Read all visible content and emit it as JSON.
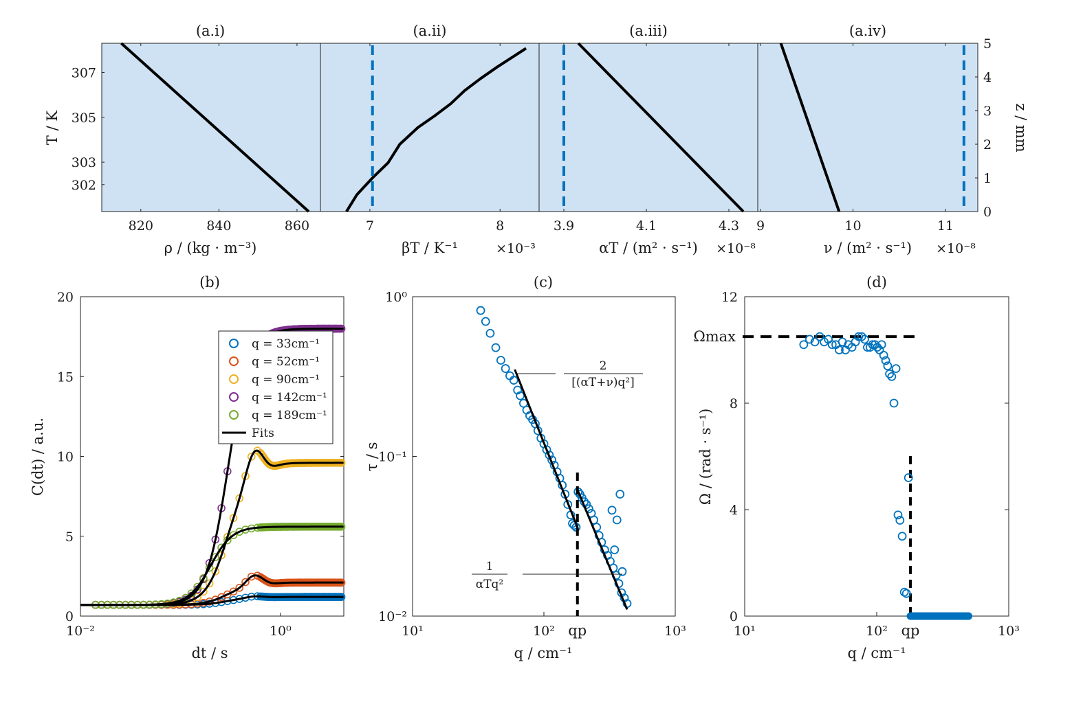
{
  "chart_data": [
    {
      "id": "a_i",
      "type": "line",
      "title": "(a.i)",
      "xlabel": "ρ / (kg · m⁻³)",
      "ylabel": "T / K",
      "xlim": [
        810,
        866
      ],
      "ylim": [
        300.8,
        308.3
      ],
      "x_ticks": [
        820,
        840,
        860
      ],
      "x_tick_labels": [
        "820",
        "840",
        "860"
      ],
      "y_ticks": [
        302,
        303,
        305,
        307
      ],
      "y_tick_labels": [
        "302",
        "303",
        "305",
        "307"
      ],
      "background": "#cfe2f3",
      "series": [
        {
          "x": [
            815,
            863
          ],
          "y": [
            308.3,
            300.8
          ]
        }
      ]
    },
    {
      "id": "a_ii",
      "type": "line",
      "title": "(a.ii)",
      "xlabel": "βT / K⁻¹",
      "exponent": "×10⁻³",
      "xlim": [
        6.62,
        8.3
      ],
      "x_ticks": [
        7,
        8
      ],
      "x_tick_labels": [
        "7",
        "8"
      ],
      "background": "#cfe2f3",
      "dashed_x": 7.02,
      "series": [
        {
          "x": [
            6.82,
            6.9,
            7.02,
            7.14,
            7.23,
            7.37,
            7.5,
            7.62,
            7.73,
            7.85,
            7.98,
            8.08,
            8.2
          ],
          "z": [
            0,
            0.5,
            1.0,
            1.45,
            2.0,
            2.5,
            2.85,
            3.2,
            3.6,
            3.95,
            4.3,
            4.55,
            4.85
          ]
        }
      ]
    },
    {
      "id": "a_iii",
      "type": "line",
      "title": "(a.iii)",
      "xlabel": "αT / (m² · s⁻¹)",
      "exponent": "×10⁻⁸",
      "xlim": [
        3.84,
        4.37
      ],
      "x_ticks": [
        3.9,
        4.1,
        4.3
      ],
      "x_tick_labels": [
        "3.9",
        "4.1",
        "4.3"
      ],
      "background": "#cfe2f3",
      "dashed_x": 3.9,
      "series": [
        {
          "x": [
            3.935,
            4.335
          ],
          "z": [
            5,
            0
          ]
        }
      ]
    },
    {
      "id": "a_iv",
      "type": "line",
      "title": "(a.iv)",
      "xlabel": "ν / (m² · s⁻¹)",
      "exponent": "×10⁻⁸",
      "xlim": [
        8.97,
        11.35
      ],
      "x_ticks": [
        9,
        10,
        11
      ],
      "x_tick_labels": [
        "9",
        "10",
        "11"
      ],
      "y2label": "z / mm",
      "y2lim": [
        0,
        5
      ],
      "y2_ticks": [
        0,
        1,
        2,
        3,
        4,
        5
      ],
      "y2_tick_labels": [
        "0",
        "1",
        "2",
        "3",
        "4",
        "5"
      ],
      "background": "#cfe2f3",
      "dashed_x": 11.2,
      "series": [
        {
          "x": [
            9.22,
            9.85
          ],
          "z": [
            5,
            0
          ]
        }
      ]
    },
    {
      "id": "b",
      "type": "line",
      "title": "(b)",
      "xlabel": "dt / s",
      "ylabel": "C(dt) / a.u.",
      "xscale": "log",
      "xlim": [
        0.01,
        4.3
      ],
      "ylim": [
        0,
        20
      ],
      "x_tick_labels": [
        "10⁻²",
        "10⁰"
      ],
      "y_tick_labels": [
        "0",
        "5",
        "10",
        "15",
        "20"
      ],
      "legend_location": "top-right",
      "legend": [
        "q = 33cm⁻¹",
        "q = 52cm⁻¹",
        "q = 90cm⁻¹",
        "q = 142cm⁻¹",
        "q = 189cm⁻¹",
        "Fits"
      ],
      "series": [
        {
          "name": "q = 33cm⁻¹",
          "color": "#0072bd",
          "y0": 0.7,
          "plateau": 1.2,
          "peak_time": 0.3,
          "overshoot": 0.15
        },
        {
          "name": "q = 52cm⁻¹",
          "color": "#d95319",
          "y0": 0.7,
          "plateau": 2.1,
          "peak_time": 0.3,
          "overshoot": 0.4
        },
        {
          "name": "q = 90cm⁻¹",
          "color": "#edb120",
          "y0": 0.7,
          "plateau": 9.6,
          "peak_time": 0.3,
          "overshoot": 0.16
        },
        {
          "name": "q = 142cm⁻¹",
          "color": "#7e2f8e",
          "y0": 0.7,
          "plateau": 18.0,
          "peak_time": 0.3,
          "overshoot": 0.0
        },
        {
          "name": "q = 189cm⁻¹",
          "color": "#77ac30",
          "y0": 0.7,
          "plateau": 5.6,
          "peak_time": 0.2,
          "overshoot": 0.0
        }
      ]
    },
    {
      "id": "c",
      "type": "scatter",
      "title": "(c)",
      "xlabel": "q / cm⁻¹",
      "ylabel": "τ / s",
      "xscale": "log",
      "yscale": "log",
      "xlim": [
        10,
        1000
      ],
      "ylim": [
        0.01,
        1
      ],
      "x_tick_labels": [
        "10¹",
        "10²",
        "10³"
      ],
      "y_tick_labels": [
        "10⁻²",
        "10⁻¹",
        "10⁰"
      ],
      "q_p": 180,
      "q_p_label": "qp",
      "annotations": [
        "2 / [(αT+ν)q²]",
        "1 / αT q²"
      ],
      "points": [
        [
          33,
          0.82
        ],
        [
          36,
          0.7
        ],
        [
          39,
          0.59
        ],
        [
          43,
          0.48
        ],
        [
          47,
          0.4
        ],
        [
          51,
          0.355
        ],
        [
          55,
          0.32
        ],
        [
          59,
          0.3
        ],
        [
          63,
          0.26
        ],
        [
          66,
          0.24
        ],
        [
          70,
          0.215
        ],
        [
          74,
          0.195
        ],
        [
          78,
          0.18
        ],
        [
          82,
          0.17
        ],
        [
          86,
          0.16
        ],
        [
          90,
          0.145
        ],
        [
          95,
          0.13
        ],
        [
          100,
          0.12
        ],
        [
          105,
          0.11
        ],
        [
          110,
          0.102
        ],
        [
          115,
          0.095
        ],
        [
          120,
          0.088
        ],
        [
          126,
          0.08
        ],
        [
          132,
          0.073
        ],
        [
          138,
          0.066
        ],
        [
          145,
          0.058
        ],
        [
          152,
          0.05
        ],
        [
          160,
          0.043
        ],
        [
          165,
          0.038
        ],
        [
          170,
          0.037
        ],
        [
          176,
          0.036
        ],
        [
          182,
          0.06
        ],
        [
          188,
          0.058
        ],
        [
          195,
          0.055
        ],
        [
          203,
          0.052
        ],
        [
          211,
          0.05
        ],
        [
          220,
          0.047
        ],
        [
          230,
          0.044
        ],
        [
          240,
          0.04
        ],
        [
          252,
          0.036
        ],
        [
          263,
          0.032
        ],
        [
          275,
          0.029
        ],
        [
          290,
          0.026
        ],
        [
          305,
          0.024
        ],
        [
          320,
          0.022
        ],
        [
          338,
          0.02
        ],
        [
          355,
          0.018
        ],
        [
          372,
          0.016
        ],
        [
          390,
          0.014
        ],
        [
          410,
          0.013
        ],
        [
          430,
          0.012
        ],
        [
          330,
          0.046
        ],
        [
          360,
          0.04
        ],
        [
          380,
          0.058
        ],
        [
          345,
          0.026
        ],
        [
          395,
          0.019
        ]
      ],
      "fits": [
        {
          "q": [
            60,
            180
          ],
          "tau": [
            0.35,
            0.036
          ]
        },
        {
          "q": [
            180,
            430
          ],
          "tau": [
            0.062,
            0.011
          ]
        }
      ]
    },
    {
      "id": "d",
      "type": "scatter",
      "title": "(d)",
      "xlabel": "q / cm⁻¹",
      "ylabel": "Ω / (rad · s⁻¹)",
      "xscale": "log",
      "xlim": [
        10,
        1000
      ],
      "ylim": [
        0,
        12
      ],
      "x_tick_labels": [
        "10¹",
        "10²",
        "10³"
      ],
      "y_tick_labels": [
        "0",
        "4",
        "8",
        "12"
      ],
      "q_p": 180,
      "q_p_label": "qp",
      "omega_max": 10.5,
      "omega_max_label": "Ωmax",
      "points": [
        [
          28,
          10.2
        ],
        [
          31,
          10.4
        ],
        [
          34,
          10.3
        ],
        [
          37,
          10.5
        ],
        [
          40,
          10.3
        ],
        [
          43,
          10.4
        ],
        [
          46,
          10.2
        ],
        [
          49,
          10.2
        ],
        [
          52,
          10.0
        ],
        [
          55,
          10.3
        ],
        [
          58,
          10.0
        ],
        [
          61,
          10.2
        ],
        [
          65,
          10.1
        ],
        [
          69,
          10.3
        ],
        [
          73,
          10.5
        ],
        [
          77,
          10.5
        ],
        [
          81,
          10.4
        ],
        [
          85,
          10.1
        ],
        [
          89,
          10.1
        ],
        [
          93,
          10.2
        ],
        [
          97,
          10.2
        ],
        [
          101,
          10.1
        ],
        [
          105,
          10.0
        ],
        [
          109,
          10.2
        ],
        [
          113,
          9.8
        ],
        [
          117,
          9.6
        ],
        [
          121,
          9.4
        ],
        [
          125,
          9.1
        ],
        [
          130,
          9.0
        ],
        [
          135,
          8.0
        ],
        [
          140,
          9.3
        ],
        [
          145,
          3.8
        ],
        [
          150,
          3.6
        ],
        [
          156,
          3.0
        ],
        [
          162,
          0.9
        ],
        [
          168,
          0.85
        ],
        [
          174,
          5.2
        ]
      ],
      "zero_band": [
        180,
        500
      ]
    }
  ]
}
